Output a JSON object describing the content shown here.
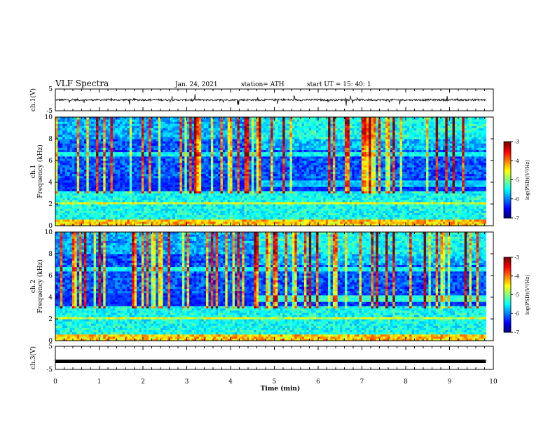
{
  "header": {
    "title": "VLF Spectra",
    "date": "Jan. 24, 2021",
    "station": "station= ATH",
    "start": "start  UT  =    15: 40: 1"
  },
  "chart_data": [
    {
      "type": "line",
      "panel": "ch1-waveform",
      "ylabel": "ch.1(V)",
      "ylim": [
        -5,
        5
      ],
      "yticks": [
        "5",
        "-5"
      ],
      "xlim": [
        0,
        10
      ],
      "baseline": 0,
      "data_extent_min": 9.83
    },
    {
      "type": "heatmap",
      "panel": "ch1-spectrogram",
      "ylabel": "ch.1\nFrequency (kHz)",
      "ylim": [
        0,
        10
      ],
      "yticks": [
        "0",
        "2",
        "4",
        "6",
        "8",
        "10"
      ],
      "xlim": [
        0,
        10
      ],
      "colorbar": {
        "label": "log(PSD)(V²/Hz)",
        "range": [
          -7,
          -3
        ],
        "ticks": [
          "-3",
          "-4",
          "-5",
          "-6",
          "-7"
        ]
      }
    },
    {
      "type": "heatmap",
      "panel": "ch2-spectrogram",
      "ylabel": "ch.2\nFrequency (kHz)",
      "ylim": [
        0,
        10
      ],
      "yticks": [
        "0",
        "2",
        "4",
        "6",
        "8",
        "10"
      ],
      "xlim": [
        0,
        10
      ],
      "colorbar": {
        "label": "log(PSD)(V²/Hz)",
        "range": [
          -7,
          -3
        ],
        "ticks": [
          "-3",
          "-4",
          "-5",
          "-6",
          "-7"
        ]
      }
    },
    {
      "type": "line",
      "panel": "ch3-waveform",
      "ylabel": "ch.3(V)",
      "ylim": [
        -5,
        5
      ],
      "yticks": [
        "5",
        "-5"
      ],
      "xlim": [
        0,
        10
      ],
      "constant_value": -1.5
    }
  ],
  "xaxis": {
    "label": "Time  (min)",
    "ticks": [
      "0",
      "1",
      "2",
      "3",
      "4",
      "5",
      "6",
      "7",
      "8",
      "9",
      "10"
    ]
  },
  "colors": {
    "background": "#ffffff",
    "trace": "#000000"
  }
}
